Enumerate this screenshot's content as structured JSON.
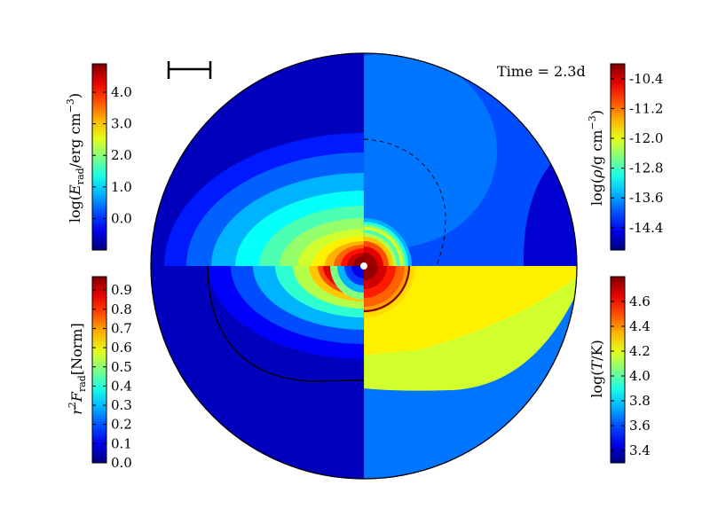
{
  "annotation": "Time = 2.3d",
  "colorbars": [
    {
      "key": "erad",
      "label": "log(E_rad/erg cm^-3)",
      "range": [
        -1.0,
        4.9
      ],
      "ticks": [
        0.0,
        1.0,
        2.0,
        3.0,
        4.0
      ],
      "tick_labels": [
        "0.0",
        "1.0",
        "2.0",
        "3.0",
        "4.0"
      ],
      "placement": "top-left"
    },
    {
      "key": "flux",
      "label": "r^2 F_rad [Norm]",
      "range": [
        0.0,
        0.97
      ],
      "ticks": [
        0.0,
        0.1,
        0.2,
        0.3,
        0.4,
        0.5,
        0.6,
        0.7,
        0.8,
        0.9
      ],
      "tick_labels": [
        "0.0",
        "0.1",
        "0.2",
        "0.3",
        "0.4",
        "0.5",
        "0.6",
        "0.7",
        "0.8",
        "0.9"
      ],
      "placement": "bottom-left"
    },
    {
      "key": "rho",
      "label": "log(ρ/g cm^-3)",
      "range": [
        -15.0,
        -10.0
      ],
      "ticks": [
        -14.4,
        -13.6,
        -12.8,
        -12.0,
        -11.2,
        -10.4
      ],
      "tick_labels": [
        "-14.4",
        "-13.6",
        "-12.8",
        "-12.0",
        "-11.2",
        "-10.4"
      ],
      "placement": "top-right"
    },
    {
      "key": "temp",
      "label": "log(T/K)",
      "range": [
        3.3,
        4.8
      ],
      "ticks": [
        3.4,
        3.6,
        3.8,
        4.0,
        4.2,
        4.4,
        4.6
      ],
      "tick_labels": [
        "3.4",
        "3.6",
        "3.8",
        "4.0",
        "4.2",
        "4.4",
        "4.6"
      ],
      "placement": "bottom-right"
    }
  ],
  "chart_data": {
    "type": "heatmap",
    "colormap": "jet",
    "layout": "circular domain split into four quadrants, one field per quadrant",
    "quadrants": [
      {
        "position": "top-left",
        "field": "log(E_rad/erg cm^-3)",
        "value_range": [
          -1.0,
          4.9
        ]
      },
      {
        "position": "top-right",
        "field": "log(ρ/g cm^-3)",
        "value_range": [
          -15.0,
          -10.0
        ]
      },
      {
        "position": "bottom-left",
        "field": "r^2 F_rad [Norm]",
        "value_range": [
          0.0,
          0.97
        ]
      },
      {
        "position": "bottom-right",
        "field": "log(T/K)",
        "value_range": [
          3.3,
          4.8
        ]
      }
    ],
    "contours": [
      {
        "quadrant": "top-right",
        "style": "dashed"
      },
      {
        "quadrant": "bottom-left",
        "style": "solid"
      },
      {
        "quadrant": "bottom-right",
        "style": "solid dark red"
      }
    ],
    "scale_bar": "top-left corner, unlabeled",
    "grid": false,
    "legend": "none"
  }
}
